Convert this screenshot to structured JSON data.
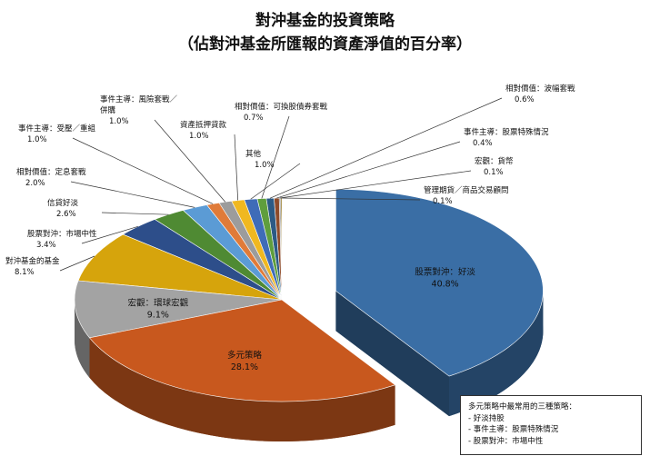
{
  "title": "對沖基金的投資策略",
  "subtitle": "（佔對沖基金所匯報的資產淨值的百分率）",
  "chart_data": {
    "type": "pie",
    "title": "對沖基金的投資策略",
    "subtitle": "（佔對沖基金所匯報的資產淨值的百分率）",
    "slices": [
      {
        "label": "股票對沖：好淡",
        "value_text": "40.8%",
        "value": 40.8,
        "color": "#3a6ea5"
      },
      {
        "label": "多元策略",
        "value_text": "28.1%",
        "value": 28.1,
        "color": "#c8581e"
      },
      {
        "label": "宏觀：環球宏觀",
        "value_text": "9.1%",
        "value": 9.1,
        "color": "#a3a3a3"
      },
      {
        "label": "對沖基金的基金",
        "value_text": "8.1%",
        "value": 8.1,
        "color": "#d6a40c"
      },
      {
        "label": "股票對沖：市場中性",
        "value_text": "3.4%",
        "value": 3.4,
        "color": "#2d4e8a"
      },
      {
        "label": "信貸好淡",
        "value_text": "2.6%",
        "value": 2.6,
        "color": "#4f8a33"
      },
      {
        "label": "相對價值：定息套戰",
        "value_text": "2.0%",
        "value": 2.0,
        "color": "#5b9bd5"
      },
      {
        "label": "事件主導：受壓／重組",
        "value_text": "1.0%",
        "value": 1.0,
        "color": "#e07b39"
      },
      {
        "label": "事件主導：風險套戰／併購",
        "value_text": "1.0%",
        "value": 1.0,
        "color": "#9c9c9c"
      },
      {
        "label": "資產抵押貸款",
        "value_text": "1.0%",
        "value": 1.0,
        "color": "#f0b820"
      },
      {
        "label": "其他",
        "value_text": "1.0%",
        "value": 1.0,
        "color": "#3f6cb8"
      },
      {
        "label": "相對價值：可換股債券套戰",
        "value_text": "0.7%",
        "value": 0.7,
        "color": "#5f9e3d"
      },
      {
        "label": "相對價值：波幅套戰",
        "value_text": "0.6%",
        "value": 0.6,
        "color": "#2b5a85"
      },
      {
        "label": "事件主導：股票特殊情況",
        "value_text": "0.4%",
        "value": 0.4,
        "color": "#8e4b2a"
      },
      {
        "label": "宏觀：貨幣",
        "value_text": "0.1%",
        "value": 0.1,
        "color": "#6f6f6f"
      },
      {
        "label": "管理期貨／商品交易顧問",
        "value_text": "0.1%",
        "value": 0.1,
        "color": "#8c6d12"
      }
    ],
    "exploded": "股票對沖：好淡"
  },
  "callout": {
    "heading": "多元策略中最常用的三種策略：",
    "items": [
      "好淡持股",
      "事件主導：股票特殊情況",
      "股票對沖：市場中性"
    ]
  }
}
